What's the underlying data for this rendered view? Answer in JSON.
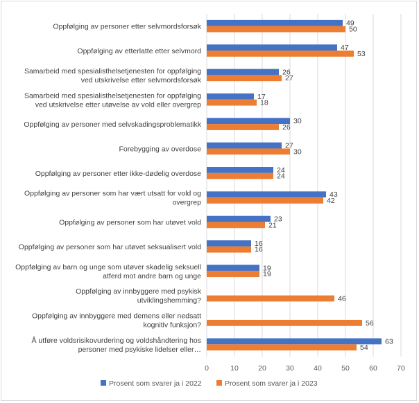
{
  "chart_data": {
    "type": "bar",
    "orientation": "horizontal",
    "categories": [
      [
        "Oppfølging av personer etter selvmordsforsøk"
      ],
      [
        "Oppfølging av etterlatte etter selvmord"
      ],
      [
        "Samarbeid med spesialisthelsetjenesten for oppfølging",
        "ved utskrivelse etter selvmordsforsøk"
      ],
      [
        "Samarbeid med spesialisthelsetjenesten for oppfølging",
        "ved utskrivelse etter utøvelse av vold eller overgrep"
      ],
      [
        "Oppfølging av personer med selvskadingsproblematikk"
      ],
      [
        "Forebygging av overdose"
      ],
      [
        "Oppfølging av personer etter ikke-dødelig overdose"
      ],
      [
        "Oppfølging av personer som har vært utsatt for vold og",
        "overgrep"
      ],
      [
        "Oppfølging av personer som har utøvet vold"
      ],
      [
        "Oppfølging av personer som har utøvet seksualisert vold"
      ],
      [
        "Oppfølging av barn og unge som utøver skadelig seksuell",
        "atferd mot andre barn og unge"
      ],
      [
        "Oppfølging av innbyggere med psykisk",
        "utviklingshemming?"
      ],
      [
        "Oppfølging av innbyggere med demens eller nedsatt",
        "kognitiv funksjon?"
      ],
      [
        "Å utføre voldsrisikovurdering og voldshåndtering hos",
        "personer med psykiske lidelser eller…"
      ]
    ],
    "series": [
      {
        "name": "Prosent som svarer ja i 2022",
        "color": "#4472c4",
        "values": [
          49,
          47,
          26,
          17,
          30,
          27,
          24,
          43,
          23,
          16,
          19,
          null,
          null,
          63
        ]
      },
      {
        "name": "Prosent som svarer ja i 2023",
        "color": "#ed7d31",
        "values": [
          50,
          53,
          27,
          18,
          26,
          30,
          24,
          42,
          21,
          16,
          19,
          46,
          56,
          54
        ]
      }
    ],
    "xlim": [
      0,
      70
    ],
    "xticks": [
      "0",
      "10",
      "20",
      "30",
      "40",
      "50",
      "60",
      "70"
    ],
    "grid": "vertical",
    "legend": "bottom"
  }
}
